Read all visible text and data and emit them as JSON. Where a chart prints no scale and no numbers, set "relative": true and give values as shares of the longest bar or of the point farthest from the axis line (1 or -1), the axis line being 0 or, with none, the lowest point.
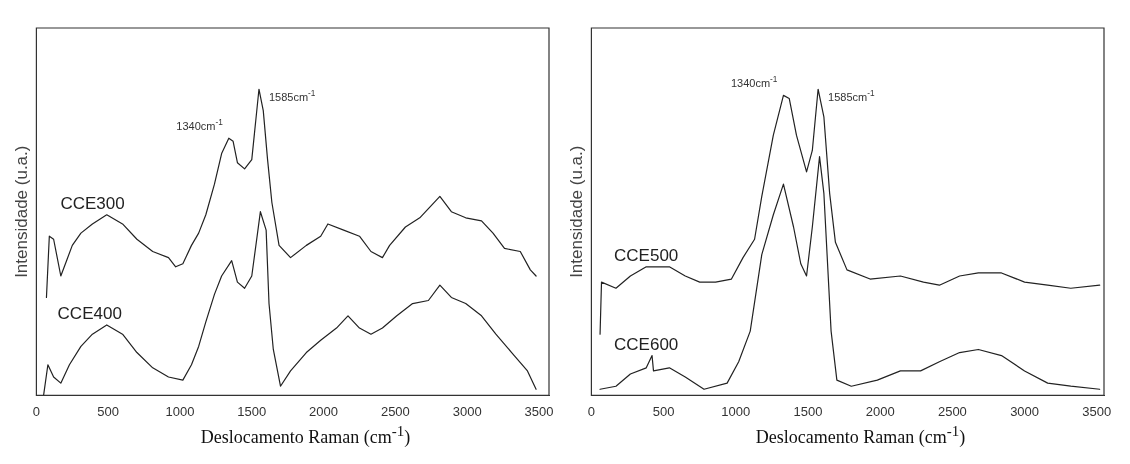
{
  "chart_data": [
    {
      "type": "line",
      "xlabel": "Deslocamento Raman (cm$^{-1}$)",
      "ylabel": "Intensidade (u.a.)",
      "relative": true,
      "xlim": [
        0,
        3570
      ],
      "xticks": [
        0,
        500,
        1000,
        1500,
        2000,
        2500,
        3000,
        3500
      ],
      "grid": false,
      "legend": false,
      "marker": "none",
      "line_style": "solid",
      "annotations": [
        {
          "text": "1340cm$^{-1}$",
          "x": 1340,
          "y": 0.84
        },
        {
          "text": "1585cm$^{-1}$",
          "x": 1550,
          "y": 1.0
        }
      ],
      "series": [
        {
          "name": "CCE300",
          "color": "#222222",
          "x": [
            70,
            90,
            120,
            170,
            210,
            250,
            310,
            390,
            490,
            600,
            700,
            810,
            920,
            970,
            1020,
            1080,
            1130,
            1180,
            1240,
            1290,
            1340,
            1370,
            1400,
            1450,
            1500,
            1550,
            1580,
            1610,
            1640,
            1690,
            1770,
            1880,
            1980,
            2030,
            2140,
            2250,
            2330,
            2410,
            2460,
            2570,
            2670,
            2810,
            2890,
            2990,
            3100,
            3180,
            3260,
            3370,
            3440,
            3480
          ],
          "values": [
            0.32,
            0.52,
            0.51,
            0.39,
            0.44,
            0.49,
            0.53,
            0.56,
            0.59,
            0.56,
            0.51,
            0.47,
            0.45,
            0.42,
            0.43,
            0.49,
            0.53,
            0.59,
            0.69,
            0.79,
            0.84,
            0.83,
            0.76,
            0.74,
            0.77,
            1.0,
            0.93,
            0.77,
            0.63,
            0.49,
            0.45,
            0.49,
            0.52,
            0.56,
            0.54,
            0.52,
            0.47,
            0.45,
            0.49,
            0.55,
            0.58,
            0.65,
            0.6,
            0.58,
            0.57,
            0.53,
            0.48,
            0.47,
            0.41,
            0.39
          ]
        },
        {
          "name": "CCE400",
          "color": "#222222",
          "x": [
            50,
            80,
            120,
            170,
            230,
            310,
            390,
            490,
            600,
            700,
            810,
            920,
            1020,
            1080,
            1130,
            1180,
            1240,
            1290,
            1360,
            1400,
            1450,
            1500,
            1560,
            1600,
            1620,
            1650,
            1700,
            1770,
            1880,
            1980,
            2090,
            2170,
            2250,
            2330,
            2410,
            2510,
            2620,
            2730,
            2810,
            2890,
            2990,
            3100,
            3200,
            3310,
            3420,
            3480
          ],
          "values": [
            0,
            0.1,
            0.06,
            0.04,
            0.1,
            0.16,
            0.2,
            0.23,
            0.2,
            0.14,
            0.09,
            0.06,
            0.05,
            0.1,
            0.16,
            0.24,
            0.33,
            0.39,
            0.44,
            0.37,
            0.35,
            0.39,
            0.6,
            0.54,
            0.3,
            0.15,
            0.03,
            0.08,
            0.14,
            0.18,
            0.22,
            0.26,
            0.22,
            0.2,
            0.22,
            0.26,
            0.3,
            0.31,
            0.36,
            0.32,
            0.3,
            0.26,
            0.2,
            0.14,
            0.08,
            0.02
          ]
        }
      ]
    },
    {
      "type": "line",
      "xlabel": "Deslocamento Raman (cm$^{-1}$)",
      "ylabel": "Intensidade (u.a.)",
      "relative": true,
      "xlim": [
        0,
        3550
      ],
      "xticks": [
        0,
        500,
        1000,
        1500,
        2000,
        2500,
        3000,
        3500
      ],
      "grid": false,
      "legend": false,
      "marker": "none",
      "line_style": "solid",
      "annotations": [
        {
          "text": "1340cm$^{-1}$",
          "x": 1330,
          "y": 0.98
        },
        {
          "text": "1585cm$^{-1}$",
          "x": 1570,
          "y": 1.0
        }
      ],
      "series": [
        {
          "name": "CCE500",
          "color": "#222222",
          "x": [
            60,
            70,
            170,
            270,
            380,
            540,
            650,
            750,
            860,
            970,
            1050,
            1130,
            1180,
            1260,
            1330,
            1370,
            1420,
            1490,
            1530,
            1570,
            1610,
            1650,
            1690,
            1770,
            1930,
            2140,
            2300,
            2410,
            2550,
            2680,
            2840,
            3000,
            3160,
            3320,
            3520
          ],
          "values": [
            0.2,
            0.37,
            0.35,
            0.39,
            0.42,
            0.42,
            0.39,
            0.37,
            0.37,
            0.38,
            0.45,
            0.51,
            0.65,
            0.85,
            0.98,
            0.97,
            0.85,
            0.73,
            0.8,
            1.0,
            0.91,
            0.66,
            0.5,
            0.41,
            0.38,
            0.39,
            0.37,
            0.36,
            0.39,
            0.4,
            0.4,
            0.37,
            0.36,
            0.35,
            0.36
          ]
        },
        {
          "name": "CCE600",
          "color": "#222222",
          "x": [
            60,
            170,
            270,
            380,
            420,
            430,
            540,
            650,
            780,
            940,
            1020,
            1100,
            1180,
            1260,
            1330,
            1400,
            1450,
            1490,
            1530,
            1580,
            1610,
            1660,
            1700,
            1800,
            1980,
            2140,
            2280,
            2410,
            2550,
            2680,
            2840,
            3000,
            3160,
            3320,
            3520
          ],
          "values": [
            0.02,
            0.03,
            0.07,
            0.09,
            0.13,
            0.08,
            0.09,
            0.06,
            0.02,
            0.04,
            0.11,
            0.21,
            0.46,
            0.59,
            0.69,
            0.55,
            0.43,
            0.39,
            0.55,
            0.78,
            0.66,
            0.21,
            0.05,
            0.03,
            0.05,
            0.08,
            0.08,
            0.11,
            0.14,
            0.15,
            0.13,
            0.08,
            0.04,
            0.03,
            0.02
          ]
        }
      ]
    }
  ]
}
